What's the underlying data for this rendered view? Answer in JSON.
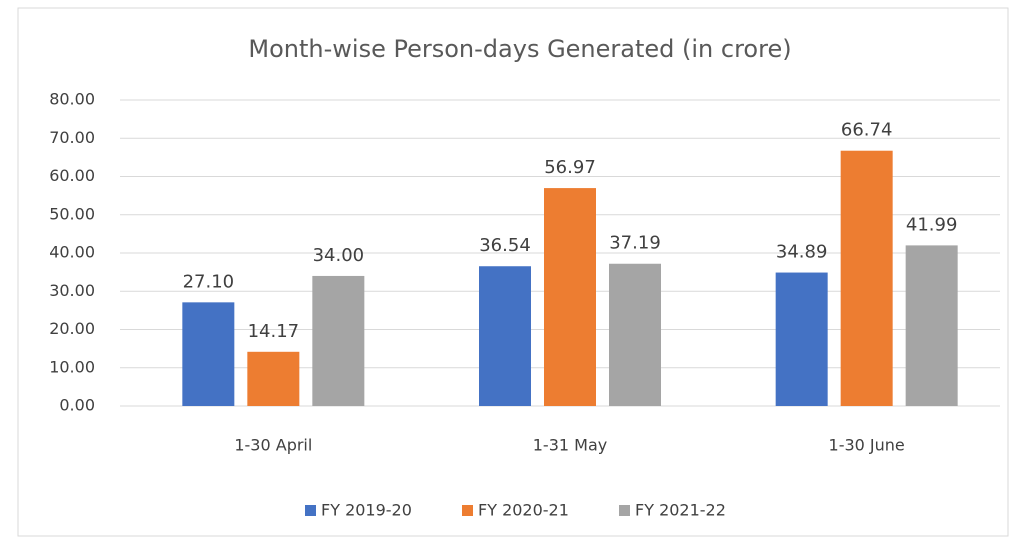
{
  "chart_data": {
    "type": "bar",
    "title": "Month-wise Person-days Generated (in crore)",
    "categories": [
      "1-30 April",
      "1-31 May",
      "1-30 June"
    ],
    "series": [
      {
        "name": "FY 2019-20",
        "color": "#4472c4",
        "values": [
          27.1,
          36.54,
          34.89
        ],
        "value_labels": [
          "27.10",
          "36.54",
          "34.89"
        ]
      },
      {
        "name": "FY 2020-21",
        "color": "#ed7d31",
        "values": [
          14.17,
          56.97,
          66.74
        ],
        "value_labels": [
          "14.17",
          "56.97",
          "66.74"
        ]
      },
      {
        "name": "FY 2021-22",
        "color": "#a5a5a5",
        "values": [
          34,
          37.19,
          41.99
        ],
        "value_labels": [
          "34.00",
          "37.19",
          "41.99"
        ]
      }
    ],
    "ylim": [
      0,
      80
    ],
    "yticks": [
      {
        "value": 0,
        "label": "0.00"
      },
      {
        "value": 10,
        "label": "10.00"
      },
      {
        "value": 20,
        "label": "20.00"
      },
      {
        "value": 30,
        "label": "30.00"
      },
      {
        "value": 40,
        "label": "40.00"
      },
      {
        "value": 50,
        "label": "50.00"
      },
      {
        "value": 60,
        "label": "60.00"
      },
      {
        "value": 70,
        "label": "70.00"
      },
      {
        "value": 80,
        "label": "80.00"
      }
    ],
    "grid": true,
    "legend": "bottom"
  }
}
